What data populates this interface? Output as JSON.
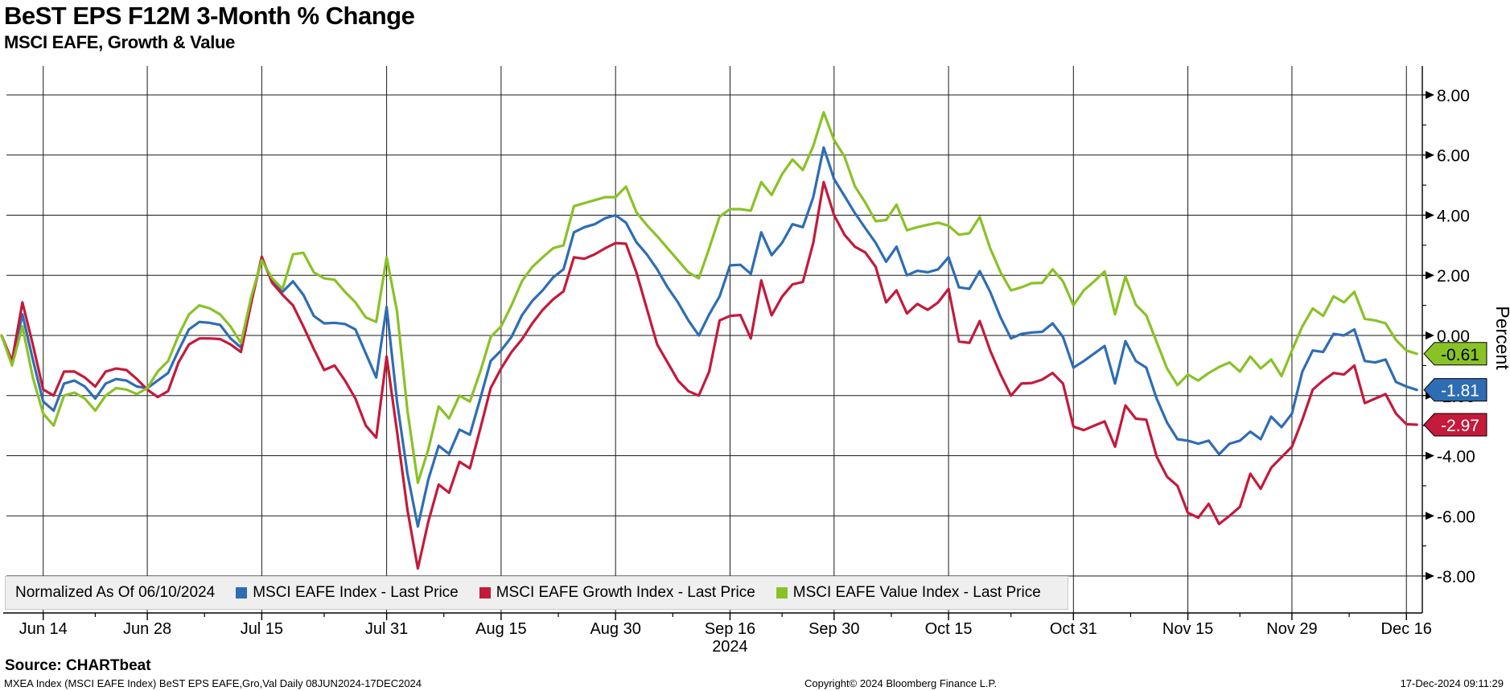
{
  "header": {
    "title": "BeST EPS F12M 3-Month % Change",
    "subtitle": "MSCI EAFE, Growth & Value"
  },
  "legend": {
    "normalized_label": "Normalized As Of 06/10/2024",
    "items": [
      {
        "label": "MSCI EAFE Index - Last Price",
        "color": "#2e6db4"
      },
      {
        "label": "MSCI EAFE Growth Index - Last Price",
        "color": "#c41a3b"
      },
      {
        "label": "MSCI EAFE Value Index - Last Price",
        "color": "#89c226"
      }
    ]
  },
  "footer": {
    "source": "Source: CHARTbeat",
    "meta": "MXEA Index (MSCI EAFE Index) BeST EPS EAFE,Gro,Val  Daily 08JUN2024-17DEC2024",
    "copyright": "Copyright© 2024 Bloomberg Finance L.P.",
    "timestamp": "17-Dec-2024 09:11:29"
  },
  "chart_data": {
    "type": "line",
    "title": "BeST EPS F12M 3-Month % Change",
    "subtitle": "MSCI EAFE, Growth & Value",
    "ylabel": "Percent",
    "ylim": [
      -9.2,
      8.95
    ],
    "grid": "on",
    "legend_position": "bottom",
    "y_ticks": [
      {
        "value": 8,
        "label": "8.00"
      },
      {
        "value": 6,
        "label": "6.00"
      },
      {
        "value": 4,
        "label": "4.00"
      },
      {
        "value": 2,
        "label": "2.00"
      },
      {
        "value": 0,
        "label": "0.00"
      },
      {
        "value": -2,
        "label": "-2.00"
      },
      {
        "value": -4,
        "label": "-4.00"
      },
      {
        "value": -6,
        "label": "-6.00"
      },
      {
        "value": -8,
        "label": "-8.00"
      }
    ],
    "y_minor_ticks": [
      7,
      5,
      3,
      1,
      -1,
      -3,
      -5,
      -7
    ],
    "x_ticks": [
      {
        "label": "Jun 14",
        "i": 4
      },
      {
        "label": "Jun 28",
        "i": 14
      },
      {
        "label": "Jul 15",
        "i": 25
      },
      {
        "label": "Jul 31",
        "i": 37
      },
      {
        "label": "Aug 15",
        "i": 48
      },
      {
        "label": "Aug 30",
        "i": 59
      },
      {
        "label": "Sep 16",
        "i": 70
      },
      {
        "label": "Sep 30",
        "i": 80
      },
      {
        "label": "Oct 15",
        "i": 91
      },
      {
        "label": "Oct 31",
        "i": 103
      },
      {
        "label": "Nov 15",
        "i": 114
      },
      {
        "label": "Nov 29",
        "i": 124
      },
      {
        "label": "Dec 16",
        "i": 135
      }
    ],
    "year_label": {
      "label": "2024",
      "i": 70
    },
    "x_range_note": "Daily trading days 10JUN2024 (index 0) through 17DEC2024 (index 136), normalized to 0 on 06/10/2024",
    "last_values": [
      {
        "value": "-0.61",
        "bg": "#89c226",
        "fg": "#000000",
        "v": -0.61
      },
      {
        "value": "-1.81",
        "bg": "#2e6db4",
        "fg": "#ffffff",
        "v": -1.81
      },
      {
        "value": "-2.97",
        "bg": "#c41a3b",
        "fg": "#ffffff",
        "v": -2.97
      }
    ],
    "series": [
      {
        "name": "MSCI EAFE Index - Last Price",
        "color": "#2e6db4",
        "values": [
          0.0,
          -0.9,
          0.7,
          -0.8,
          -2.2,
          -2.5,
          -1.6,
          -1.5,
          -1.7,
          -2.1,
          -1.6,
          -1.45,
          -1.5,
          -1.7,
          -1.75,
          -1.5,
          -1.25,
          -0.5,
          0.2,
          0.45,
          0.42,
          0.35,
          -0.1,
          -0.4,
          1.2,
          2.55,
          1.8,
          1.45,
          1.8,
          1.35,
          0.65,
          0.4,
          0.42,
          0.38,
          0.2,
          -0.6,
          -1.4,
          0.95,
          -2.2,
          -4.6,
          -6.35,
          -4.8,
          -3.67,
          -3.94,
          -3.13,
          -3.3,
          -2.1,
          -0.85,
          -0.5,
          -0.05,
          0.67,
          1.15,
          1.5,
          1.93,
          2.2,
          3.43,
          3.6,
          3.7,
          3.9,
          4.0,
          3.75,
          3.1,
          2.7,
          2.2,
          1.6,
          1.1,
          0.5,
          0.0,
          0.7,
          1.3,
          2.33,
          2.35,
          2.05,
          3.43,
          2.67,
          3.08,
          3.7,
          3.6,
          4.6,
          6.25,
          5.2,
          4.64,
          4.07,
          3.57,
          3.08,
          2.45,
          2.95,
          2.0,
          2.15,
          2.1,
          2.2,
          2.6,
          1.6,
          1.55,
          2.14,
          1.45,
          0.6,
          -0.1,
          0.05,
          0.1,
          0.12,
          0.4,
          -0.05,
          -1.07,
          -0.85,
          -0.6,
          -0.35,
          -1.6,
          -0.19,
          -0.85,
          -1.07,
          -2.1,
          -2.9,
          -3.45,
          -3.5,
          -3.6,
          -3.5,
          -3.95,
          -3.6,
          -3.5,
          -3.2,
          -3.45,
          -2.7,
          -3.05,
          -2.6,
          -1.2,
          -0.5,
          -0.55,
          0.05,
          0.0,
          0.2,
          -0.85,
          -0.9,
          -0.8,
          -1.55,
          -1.7,
          -1.81
        ]
      },
      {
        "name": "MSCI EAFE Growth Index - Last Price",
        "color": "#c41a3b",
        "values": [
          0.0,
          -0.85,
          1.1,
          -0.3,
          -1.8,
          -2.0,
          -1.2,
          -1.2,
          -1.4,
          -1.7,
          -1.2,
          -1.1,
          -1.15,
          -1.45,
          -1.8,
          -2.05,
          -1.85,
          -0.9,
          -0.3,
          -0.1,
          -0.1,
          -0.12,
          -0.3,
          -0.55,
          1.1,
          2.62,
          1.75,
          1.35,
          1.0,
          0.3,
          -0.45,
          -1.15,
          -1.0,
          -1.5,
          -2.1,
          -3.0,
          -3.4,
          -0.7,
          -3.2,
          -5.8,
          -7.75,
          -6.2,
          -4.96,
          -5.23,
          -4.2,
          -4.42,
          -3.1,
          -1.75,
          -1.1,
          -0.55,
          -0.13,
          0.4,
          0.85,
          1.2,
          1.47,
          2.6,
          2.55,
          2.7,
          2.9,
          3.07,
          3.05,
          2.1,
          0.9,
          -0.3,
          -0.9,
          -1.5,
          -1.85,
          -2.0,
          -1.2,
          0.5,
          0.65,
          0.68,
          -0.1,
          1.83,
          0.67,
          1.29,
          1.7,
          1.78,
          3.08,
          5.1,
          4.0,
          3.35,
          2.95,
          2.76,
          2.28,
          1.1,
          1.5,
          0.73,
          1.05,
          0.85,
          1.1,
          1.55,
          -0.2,
          -0.25,
          0.48,
          -0.5,
          -1.3,
          -2.0,
          -1.6,
          -1.58,
          -1.47,
          -1.25,
          -1.6,
          -3.03,
          -3.15,
          -3.0,
          -2.86,
          -3.7,
          -2.33,
          -2.77,
          -2.8,
          -4.03,
          -4.7,
          -5.0,
          -5.9,
          -6.06,
          -5.6,
          -6.27,
          -6.0,
          -5.7,
          -4.6,
          -5.1,
          -4.4,
          -4.05,
          -3.7,
          -2.8,
          -1.8,
          -1.5,
          -1.25,
          -1.3,
          -1.0,
          -2.25,
          -2.1,
          -1.95,
          -2.6,
          -2.95,
          -2.97
        ]
      },
      {
        "name": "MSCI EAFE Value Index - Last Price",
        "color": "#89c226",
        "values": [
          0.0,
          -1.0,
          0.3,
          -1.4,
          -2.6,
          -3.0,
          -2.0,
          -1.9,
          -2.1,
          -2.5,
          -2.0,
          -1.75,
          -1.8,
          -1.95,
          -1.75,
          -1.2,
          -0.85,
          0.0,
          0.7,
          1.0,
          0.9,
          0.7,
          0.3,
          -0.25,
          1.3,
          2.5,
          1.9,
          1.55,
          2.7,
          2.75,
          2.1,
          1.9,
          1.85,
          1.45,
          1.1,
          0.6,
          0.45,
          2.6,
          0.8,
          -2.5,
          -4.9,
          -3.8,
          -2.36,
          -2.76,
          -2.0,
          -2.2,
          -1.2,
          -0.05,
          0.3,
          1.0,
          1.8,
          2.28,
          2.6,
          2.9,
          3.0,
          4.3,
          4.4,
          4.5,
          4.6,
          4.6,
          4.95,
          4.1,
          3.67,
          3.3,
          2.9,
          2.5,
          2.1,
          1.9,
          2.9,
          3.95,
          4.2,
          4.2,
          4.15,
          5.1,
          4.67,
          5.36,
          5.85,
          5.5,
          6.3,
          7.42,
          6.5,
          5.95,
          4.96,
          4.42,
          3.8,
          3.84,
          4.35,
          3.5,
          3.6,
          3.68,
          3.75,
          3.65,
          3.35,
          3.4,
          3.94,
          2.9,
          2.1,
          1.5,
          1.6,
          1.74,
          1.75,
          2.2,
          1.8,
          1.0,
          1.5,
          1.8,
          2.13,
          0.7,
          1.96,
          1.02,
          0.67,
          -0.22,
          -1.1,
          -1.65,
          -1.3,
          -1.5,
          -1.25,
          -1.05,
          -0.9,
          -1.2,
          -0.7,
          -1.1,
          -0.8,
          -1.35,
          -0.5,
          0.3,
          0.9,
          0.65,
          1.3,
          1.1,
          1.45,
          0.55,
          0.5,
          0.4,
          -0.15,
          -0.5,
          -0.61
        ]
      }
    ]
  }
}
